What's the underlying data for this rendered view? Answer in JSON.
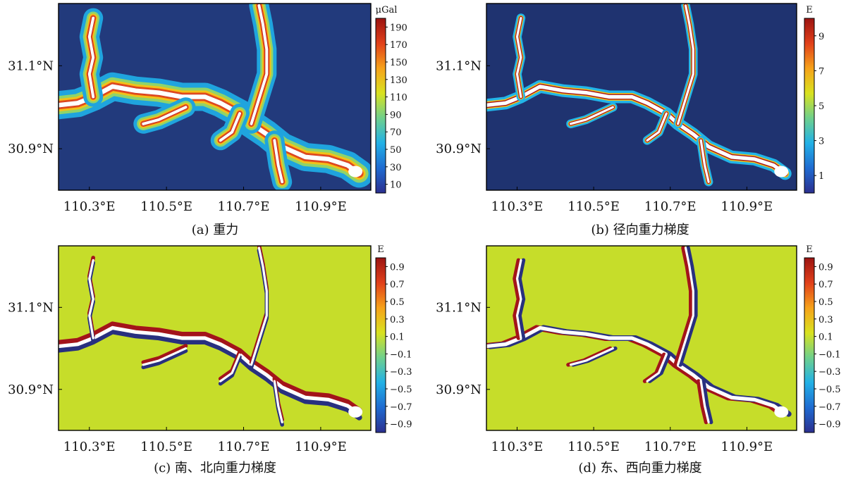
{
  "chart_data": [
    {
      "type": "heatmap",
      "caption": "(a) 重力",
      "xlabels": [
        "110.3°E",
        "110.5°E",
        "110.7°E",
        "110.9°E"
      ],
      "xticks": [
        110.3,
        110.5,
        110.7,
        110.9
      ],
      "ylabels": [
        "31.1°N",
        "30.9°N"
      ],
      "yticks": [
        31.1,
        30.9
      ],
      "xlim": [
        110.22,
        110.03
      ],
      "ylim": [
        30.8,
        31.25
      ],
      "colorbar": {
        "unit": "μGal",
        "ticks": [
          "190",
          "170",
          "150",
          "130",
          "110",
          "90",
          "70",
          "50",
          "30",
          "10"
        ],
        "range": [
          0,
          200
        ],
        "colors": [
          "#2b2f8f",
          "#1f6bd1",
          "#22b1e6",
          "#6fd08c",
          "#d9e21f",
          "#f6a21a",
          "#e1401a",
          "#9b1412"
        ]
      },
      "background": "#223a7c"
    },
    {
      "type": "heatmap",
      "caption": "(b) 径向重力梯度",
      "xlabels": [
        "110.3°E",
        "110.5°E",
        "110.7°E",
        "110.9°E"
      ],
      "xticks": [
        110.3,
        110.5,
        110.7,
        110.9
      ],
      "ylabels": [
        "31.1°N",
        "30.9°N"
      ],
      "yticks": [
        31.1,
        30.9
      ],
      "xlim": [
        110.22,
        110.03
      ],
      "ylim": [
        30.8,
        31.25
      ],
      "colorbar": {
        "unit": "E",
        "ticks": [
          "9",
          "7",
          "5",
          "3",
          "1"
        ],
        "range": [
          0,
          10
        ],
        "colors": [
          "#2b2f8f",
          "#1f6bd1",
          "#22b1e6",
          "#6fd08c",
          "#d9e21f",
          "#f6a21a",
          "#e1401a",
          "#9b1412"
        ]
      },
      "background": "#1f3370"
    },
    {
      "type": "heatmap",
      "caption": "(c) 南、北向重力梯度",
      "xlabels": [
        "110.3°E",
        "110.5°E",
        "110.7°E",
        "110.9°E"
      ],
      "xticks": [
        110.3,
        110.5,
        110.7,
        110.9
      ],
      "ylabels": [
        "31.1°N",
        "30.9°N"
      ],
      "yticks": [
        31.1,
        30.9
      ],
      "xlim": [
        110.22,
        110.03
      ],
      "ylim": [
        30.8,
        31.25
      ],
      "colorbar": {
        "unit": "E",
        "ticks": [
          "0.9",
          "0.7",
          "0.5",
          "0.3",
          "0.1",
          "−0.1",
          "−0.3",
          "−0.5",
          "−0.7",
          "−0.9"
        ],
        "range": [
          -1,
          1
        ],
        "colors": [
          "#2b2f8f",
          "#1f6bd1",
          "#22b1e6",
          "#6fd08c",
          "#d9e21f",
          "#f6a21a",
          "#e1401a",
          "#9b1412"
        ]
      },
      "background": "#c6dd2a"
    },
    {
      "type": "heatmap",
      "caption": "(d) 东、西向重力梯度",
      "xlabels": [
        "110.3°E",
        "110.5°E",
        "110.7°E",
        "110.9°E"
      ],
      "xticks": [
        110.3,
        110.5,
        110.7,
        110.9
      ],
      "ylabels": [
        "31.1°N",
        "30.9°N"
      ],
      "yticks": [
        31.1,
        30.9
      ],
      "xlim": [
        110.22,
        110.03
      ],
      "ylim": [
        30.8,
        31.25
      ],
      "colorbar": {
        "unit": "E",
        "ticks": [
          "0.9",
          "0.7",
          "0.5",
          "0.3",
          "0.1",
          "−0.1",
          "−0.3",
          "−0.5",
          "−0.7",
          "−0.9"
        ],
        "range": [
          -1,
          1
        ],
        "colors": [
          "#2b2f8f",
          "#1f6bd1",
          "#22b1e6",
          "#6fd08c",
          "#d9e21f",
          "#f6a21a",
          "#e1401a",
          "#9b1412"
        ]
      },
      "background": "#c6dd2a"
    }
  ]
}
